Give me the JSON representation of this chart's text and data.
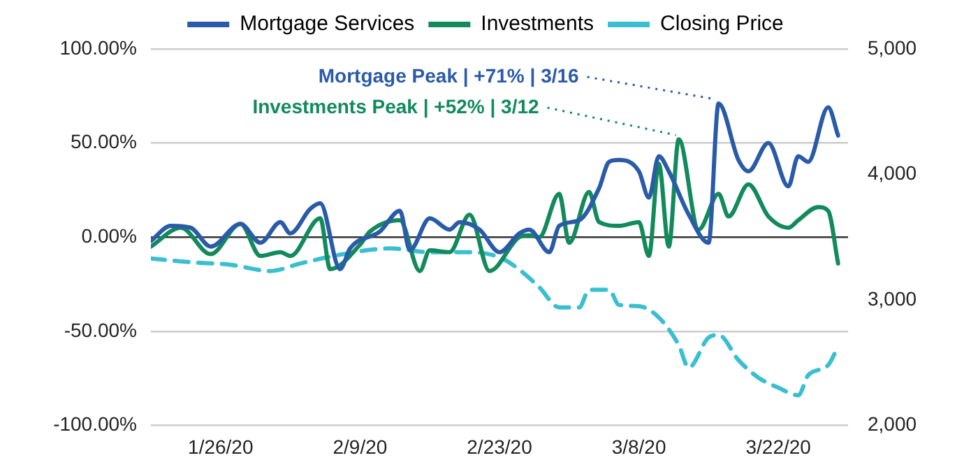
{
  "chart_data": {
    "type": "line",
    "xlim": [
      "2020-01-19",
      "2020-03-29"
    ],
    "xticks": [
      {
        "value": "2020-01-26",
        "label": "1/26/20"
      },
      {
        "value": "2020-02-09",
        "label": "2/9/20"
      },
      {
        "value": "2020-02-23",
        "label": "2/23/20"
      },
      {
        "value": "2020-03-08",
        "label": "3/8/20"
      },
      {
        "value": "2020-03-22",
        "label": "3/22/20"
      }
    ],
    "ylim": [
      -100,
      100
    ],
    "yticks": [
      {
        "value": -100,
        "label": "-100.00%"
      },
      {
        "value": -50,
        "label": "-50.00%"
      },
      {
        "value": 0,
        "label": "0.00%"
      },
      {
        "value": 50,
        "label": "50.00%"
      },
      {
        "value": 100,
        "label": "100.00%"
      }
    ],
    "y2lim": [
      2000,
      5000
    ],
    "y2ticks": [
      {
        "value": 2000,
        "label": "2,000"
      },
      {
        "value": 3000,
        "label": "3,000"
      },
      {
        "value": 4000,
        "label": "4,000"
      },
      {
        "value": 5000,
        "label": "5,000"
      }
    ],
    "grid": "y",
    "legend": "top",
    "marker": "none",
    "series": [
      {
        "name": "Mortgage Services",
        "color": "#2a5ba8",
        "line_style": "solid",
        "x": [
          "2020-01-19",
          "2020-01-21",
          "2020-01-23",
          "2020-01-25",
          "2020-01-28",
          "2020-01-30",
          "2020-02-01",
          "2020-02-02",
          "2020-02-04",
          "2020-02-05",
          "2020-02-07",
          "2020-02-08",
          "2020-02-11",
          "2020-02-13",
          "2020-02-14",
          "2020-02-16",
          "2020-02-18",
          "2020-02-19",
          "2020-02-21",
          "2020-02-23",
          "2020-02-25",
          "2020-02-26",
          "2020-02-28",
          "2020-02-29",
          "2020-03-02",
          "2020-03-04",
          "2020-03-05",
          "2020-03-06",
          "2020-03-08",
          "2020-03-09",
          "2020-03-10",
          "2020-03-11",
          "2020-03-13",
          "2020-03-15",
          "2020-03-16",
          "2020-03-18",
          "2020-03-19",
          "2020-03-21",
          "2020-03-23",
          "2020-03-24",
          "2020-03-25",
          "2020-03-27",
          "2020-03-28"
        ],
        "values": [
          -2,
          6,
          5,
          -5,
          7,
          -3,
          8,
          2,
          15,
          18,
          -17,
          -6,
          3,
          14,
          -7,
          10,
          4,
          8,
          4,
          -8,
          2,
          4,
          -8,
          6,
          9,
          26,
          40,
          41,
          35,
          21,
          43,
          35,
          12,
          -3,
          71,
          41,
          35,
          50,
          27,
          43,
          40,
          69,
          54
        ]
      },
      {
        "name": "Investments",
        "color": "#128a5c",
        "line_style": "solid",
        "x": [
          "2020-01-19",
          "2020-01-22",
          "2020-01-25",
          "2020-01-28",
          "2020-01-30",
          "2020-02-01",
          "2020-02-02",
          "2020-02-05",
          "2020-02-06",
          "2020-02-09",
          "2020-02-10",
          "2020-02-13",
          "2020-02-15",
          "2020-02-16",
          "2020-02-18",
          "2020-02-20",
          "2020-02-22",
          "2020-02-25",
          "2020-02-26",
          "2020-02-27",
          "2020-02-29",
          "2020-03-01",
          "2020-03-03",
          "2020-03-04",
          "2020-03-06",
          "2020-03-08",
          "2020-03-09",
          "2020-03-10",
          "2020-03-11",
          "2020-03-12",
          "2020-03-14",
          "2020-03-16",
          "2020-03-17",
          "2020-03-19",
          "2020-03-21",
          "2020-03-23",
          "2020-03-24",
          "2020-03-26",
          "2020-03-27",
          "2020-03-28"
        ],
        "values": [
          -5,
          5,
          -9,
          7,
          -10,
          -8,
          -10,
          10,
          -17,
          -4,
          3,
          9,
          -18,
          -7,
          -8,
          12,
          -18,
          0,
          1,
          0,
          23,
          -3,
          24,
          8,
          6,
          8,
          -10,
          39,
          -5,
          52,
          4,
          23,
          11,
          28,
          11,
          5,
          9,
          16,
          14,
          -14
        ]
      },
      {
        "name": "Closing Price",
        "color": "#3bbfcf",
        "line_style": "dashed",
        "axis": "y2",
        "x": [
          "2020-01-19",
          "2020-01-23",
          "2020-01-27",
          "2020-01-31",
          "2020-02-03",
          "2020-02-07",
          "2020-02-12",
          "2020-02-16",
          "2020-02-20",
          "2020-02-23",
          "2020-02-25",
          "2020-02-27",
          "2020-02-29",
          "2020-03-02",
          "2020-03-03",
          "2020-03-05",
          "2020-03-06",
          "2020-03-08",
          "2020-03-10",
          "2020-03-12",
          "2020-03-13",
          "2020-03-15",
          "2020-03-16",
          "2020-03-18",
          "2020-03-20",
          "2020-03-22",
          "2020-03-24",
          "2020-03-25",
          "2020-03-27",
          "2020-03-28"
        ],
        "values": [
          3330,
          3300,
          3280,
          3230,
          3290,
          3360,
          3410,
          3380,
          3380,
          3340,
          3240,
          3100,
          2940,
          2940,
          3080,
          3080,
          2960,
          2950,
          2860,
          2640,
          2460,
          2700,
          2720,
          2520,
          2380,
          2300,
          2240,
          2400,
          2480,
          2630
        ]
      }
    ],
    "annotations": [
      {
        "text": "Mortgage Peak | +71% | 3/16",
        "x": "2020-03-16",
        "y": 71
      },
      {
        "text": "Investments Peak | +52% | 3/12",
        "x": "2020-03-12",
        "y": 52
      }
    ]
  }
}
